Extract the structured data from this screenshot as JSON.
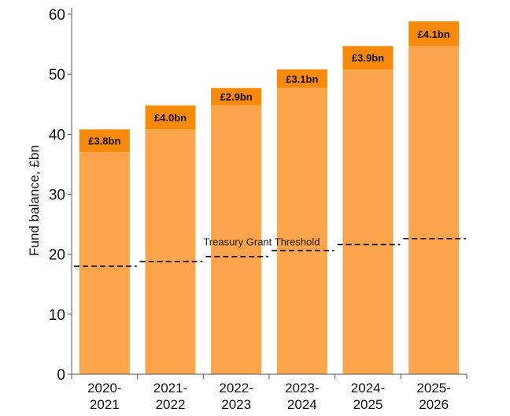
{
  "chart_data": {
    "type": "bar",
    "categories": [
      [
        "2020-",
        "2021"
      ],
      [
        "2021-",
        "2022"
      ],
      [
        "2022-",
        "2023"
      ],
      [
        "2023-",
        "2024"
      ],
      [
        "2024-",
        "2025"
      ],
      [
        "2025-",
        "2026"
      ]
    ],
    "series": [
      {
        "values": [
          37.0,
          40.8,
          44.8,
          47.7,
          50.8,
          54.7
        ]
      },
      {
        "values": [
          3.8,
          4.0,
          2.9,
          3.1,
          3.9,
          4.1
        ]
      }
    ],
    "data_labels": [
      "£3.8bn",
      "£4.0bn",
      "£2.9bn",
      "£3.1bn",
      "£3.9bn",
      "£4.1bn"
    ],
    "threshold": {
      "label": "Treasury Grant Threshold",
      "values": [
        18.0,
        18.8,
        19.6,
        20.6,
        21.6,
        22.6
      ]
    },
    "ylabel": "Fund balance, £bn",
    "xlabel": "",
    "ylim": [
      0,
      60
    ],
    "yticks": [
      0,
      10,
      20,
      30,
      40,
      50,
      60
    ],
    "colors": {
      "base": "#FBA44B",
      "top": "#F7890D",
      "threshold": "#000000",
      "axis": "#555555"
    },
    "grid": false,
    "legend": "none"
  }
}
